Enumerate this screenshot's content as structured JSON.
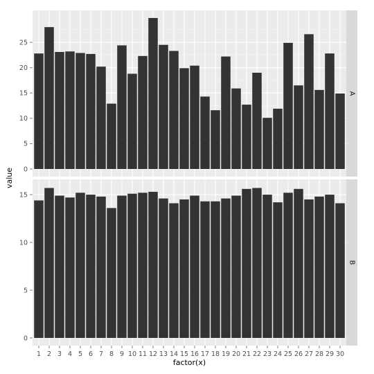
{
  "chart_data": {
    "type": "bar",
    "facet_by": "row",
    "xlabel": "factor(x)",
    "ylabel": "value",
    "categories": [
      "1",
      "2",
      "3",
      "4",
      "5",
      "6",
      "7",
      "8",
      "9",
      "10",
      "11",
      "12",
      "13",
      "14",
      "15",
      "16",
      "17",
      "18",
      "19",
      "20",
      "21",
      "22",
      "23",
      "24",
      "25",
      "26",
      "27",
      "28",
      "29",
      "30"
    ],
    "panels": [
      {
        "strip": "A",
        "ylim": [
          -1.5,
          31.3
        ],
        "yticks": [
          0,
          5,
          10,
          15,
          20,
          25
        ],
        "values": [
          22.8,
          28.0,
          23.1,
          23.2,
          22.9,
          22.7,
          20.2,
          12.9,
          24.4,
          18.8,
          22.3,
          29.8,
          24.5,
          23.3,
          19.9,
          20.4,
          14.3,
          11.6,
          22.2,
          15.9,
          12.7,
          19.0,
          10.1,
          11.9,
          24.9,
          16.5,
          26.6,
          15.6,
          22.8,
          14.9
        ]
      },
      {
        "strip": "B",
        "ylim": [
          -0.8,
          16.6
        ],
        "yticks": [
          0,
          5,
          10,
          15
        ],
        "values": [
          14.4,
          15.7,
          14.9,
          14.7,
          15.2,
          15.0,
          14.8,
          13.6,
          14.9,
          15.1,
          15.2,
          15.3,
          14.6,
          14.1,
          14.5,
          14.9,
          14.3,
          14.3,
          14.6,
          14.9,
          15.6,
          15.7,
          15.0,
          14.2,
          15.2,
          15.6,
          14.5,
          14.8,
          15.0,
          14.1
        ]
      }
    ],
    "colors": {
      "bar": "#333333",
      "panel_bg": "#ebebeb",
      "grid": "#ffffff",
      "strip_bg": "#d9d9d9"
    }
  }
}
